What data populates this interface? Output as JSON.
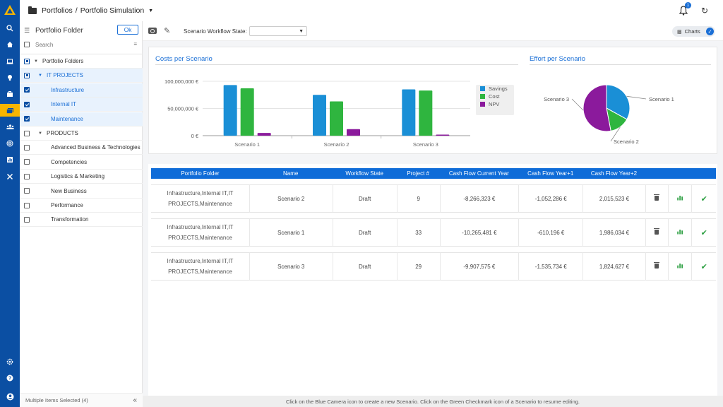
{
  "app": {
    "breadcrumb": [
      "Portfolios",
      "/",
      "Portfolio Simulation"
    ],
    "notifications_count": "1",
    "colors": {
      "brand": "#0b4fa3",
      "accent": "#1a6fd6",
      "active": "#f7b500",
      "success": "#2ea043"
    }
  },
  "rail": {
    "icons": [
      "logo-icon",
      "search-icon",
      "home-icon",
      "laptop-icon",
      "lightbulb-icon",
      "briefcase-icon",
      "portfolio-icon",
      "team-icon",
      "target-icon",
      "report-icon",
      "tools-icon",
      "settings-icon",
      "help-icon",
      "user-icon"
    ],
    "active": "portfolio-icon"
  },
  "sidebar": {
    "title": "Portfolio Folder",
    "ok_label": "Ok",
    "search_placeholder": "Search",
    "items": [
      {
        "label": "Portfolio Folders",
        "level": 0,
        "caret": true,
        "state": "partial",
        "selected": false
      },
      {
        "label": "IT PROJECTS",
        "level": 1,
        "caret": true,
        "state": "partial",
        "selected": true
      },
      {
        "label": "Infrastructure",
        "level": 2,
        "caret": false,
        "state": "checked",
        "selected": true
      },
      {
        "label": "Internal IT",
        "level": 2,
        "caret": false,
        "state": "checked",
        "selected": true
      },
      {
        "label": "Maintenance",
        "level": 2,
        "caret": false,
        "state": "checked",
        "selected": true
      },
      {
        "label": "PRODUCTS",
        "level": 1,
        "caret": true,
        "state": "unchecked",
        "selected": false
      },
      {
        "label": "Advanced Business & Technologies",
        "level": 2,
        "caret": false,
        "state": "unchecked",
        "selected": false
      },
      {
        "label": "Competencies",
        "level": 2,
        "caret": false,
        "state": "unchecked",
        "selected": false
      },
      {
        "label": "Logistics & Marketing",
        "level": 2,
        "caret": false,
        "state": "unchecked",
        "selected": false
      },
      {
        "label": "New Business",
        "level": 2,
        "caret": false,
        "state": "unchecked",
        "selected": false
      },
      {
        "label": "Performance",
        "level": 2,
        "caret": false,
        "state": "unchecked",
        "selected": false
      },
      {
        "label": "Transformation",
        "level": 2,
        "caret": false,
        "state": "unchecked",
        "selected": false
      }
    ],
    "footer_text": "Multiple Items Selected (4)"
  },
  "toolbar": {
    "workflow_label": "Scenario Workflow State:",
    "workflow_value": "",
    "charts_label": "Charts"
  },
  "charts": {
    "costs_title": "Costs per Scenario",
    "effort_title": "Effort per Scenario"
  },
  "chart_data": [
    {
      "type": "bar",
      "title": "Costs per Scenario",
      "categories": [
        "Scenario 1",
        "Scenario 2",
        "Scenario 3"
      ],
      "series": [
        {
          "name": "Savings",
          "color": "#1a8fd6",
          "values": [
            93000000,
            75000000,
            85000000
          ]
        },
        {
          "name": "Cost",
          "color": "#2fb53f",
          "values": [
            87000000,
            63000000,
            83000000
          ]
        },
        {
          "name": "NPV",
          "color": "#8b1a9c",
          "values": [
            5000000,
            12000000,
            2000000
          ]
        }
      ],
      "yticks": [
        "100,000,000 €",
        "50,000,000 €",
        "0 €"
      ],
      "ylim": [
        0,
        100000000
      ],
      "legend": "right"
    },
    {
      "type": "pie",
      "title": "Effort per Scenario",
      "labels": [
        "Scenario 1",
        "Scenario 2",
        "Scenario 3"
      ],
      "values": [
        33,
        14,
        53
      ],
      "colors": [
        "#1a8fd6",
        "#2fb53f",
        "#8b1a9c"
      ]
    }
  ],
  "table": {
    "columns": [
      "Portfolio Folder",
      "Name",
      "Workflow State",
      "Project #",
      "Cash Flow Current Year",
      "Cash Flow Year+1",
      "Cash Flow Year+2"
    ],
    "rows": [
      {
        "folder_line1": "Infrastructure,Internal IT,IT",
        "folder_line2": "PROJECTS,Maintenance",
        "name": "Scenario 2",
        "state": "Draft",
        "projects": "9",
        "cf0": "-8,266,323 €",
        "cf1": "-1,052,286 €",
        "cf2": "2,015,523 €"
      },
      {
        "folder_line1": "Infrastructure,Internal IT,IT",
        "folder_line2": "PROJECTS,Maintenance",
        "name": "Scenario 1",
        "state": "Draft",
        "projects": "33",
        "cf0": "-10,265,481 €",
        "cf1": "-610,196 €",
        "cf2": "1,986,034 €"
      },
      {
        "folder_line1": "Infrastructure,Internal IT,IT",
        "folder_line2": "PROJECTS,Maintenance",
        "name": "Scenario 3",
        "state": "Draft",
        "projects": "29",
        "cf0": "-9,907,575 €",
        "cf1": "-1,535,734 €",
        "cf2": "1,824,627 €"
      }
    ]
  },
  "status_bar": "Click on the Blue Camera icon to create a new Scenario. Click on the Green Checkmark icon of a Scenario to resume editing."
}
